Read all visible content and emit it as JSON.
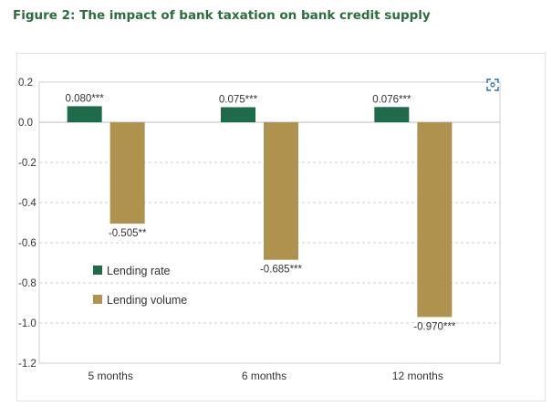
{
  "figure_title": "Figure 2: The impact of bank taxation on bank credit supply",
  "colors": {
    "title": "#2e6b3e",
    "lending_rate": "#1e6b4b",
    "lending_volume": "#b0924f",
    "grid": "#cfcfcf",
    "axis_text": "#333333"
  },
  "icons": {
    "expand": "expand-icon"
  },
  "chart_data": {
    "type": "bar",
    "title": "",
    "xlabel": "",
    "ylabel": "",
    "ylim": [
      -1.2,
      0.2
    ],
    "yticks": [
      0.2,
      0.0,
      -0.2,
      -0.4,
      -0.6,
      -0.8,
      -1.0,
      -1.2
    ],
    "ytick_labels": [
      "0.2",
      "0.0",
      "-0.2",
      "-0.4",
      "-0.6",
      "-0.8",
      "-1.0",
      "-1.2"
    ],
    "grid": true,
    "legend_position": "center-left",
    "categories": [
      "5 months",
      "6 months",
      "12 months"
    ],
    "series": [
      {
        "name": "Lending rate",
        "values": [
          0.08,
          0.075,
          0.076
        ],
        "labels": [
          "0.080***",
          "0.075***",
          "0.076***"
        ],
        "color": "#1e6b4b"
      },
      {
        "name": "Lending volume",
        "values": [
          -0.505,
          -0.685,
          -0.97
        ],
        "labels": [
          "-0.505**",
          "-0.685***",
          "-0.970***"
        ],
        "color": "#b0924f"
      }
    ]
  }
}
